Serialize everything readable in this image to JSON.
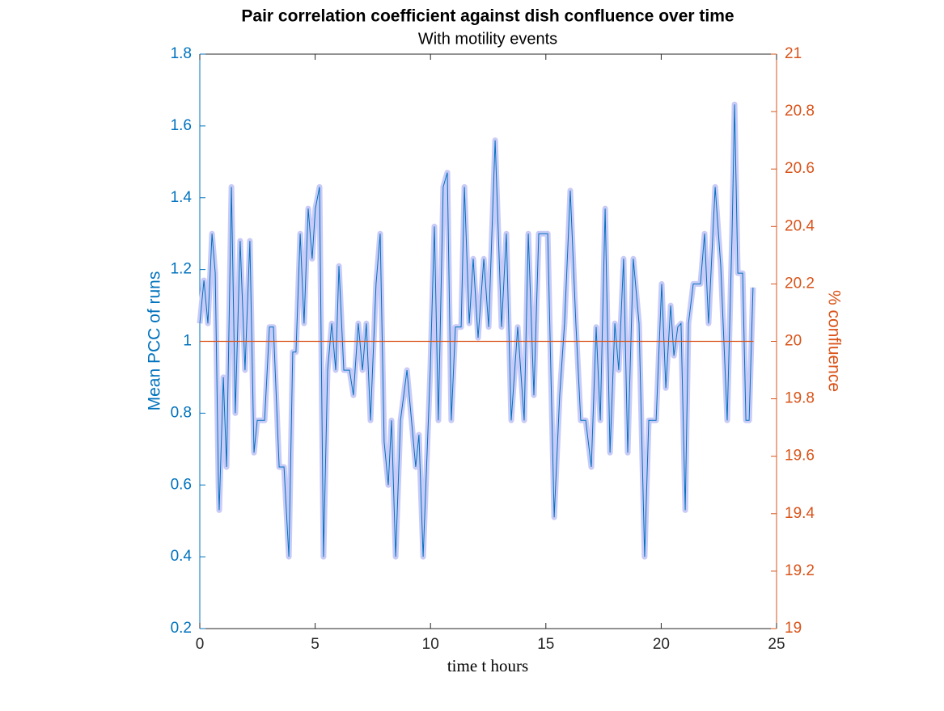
{
  "chart_data": {
    "type": "line",
    "title": "Pair correlation coefficient against dish confluence over time",
    "subtitle": "With motility events",
    "xlabel": "time t hours",
    "ylabel": "Mean PCC of runs",
    "y2label": "% confluence",
    "xlim": [
      0,
      25
    ],
    "xticks": [
      0,
      5,
      10,
      15,
      20,
      25
    ],
    "ylim": [
      0.2,
      1.8
    ],
    "yticks": [
      0.2,
      0.4,
      0.6,
      0.8,
      1,
      1.2,
      1.4,
      1.6,
      1.8
    ],
    "y2lim": [
      19,
      21
    ],
    "y2ticks": [
      19,
      19.2,
      19.4,
      19.6,
      19.8,
      20,
      20.2,
      20.4,
      20.6,
      20.8,
      21
    ],
    "grid": false,
    "series": [
      {
        "color": "#0072bd",
        "axis": "y",
        "x": [
          0,
          0.18,
          0.35,
          0.53,
          0.67,
          0.81,
          0.84,
          1.02,
          1.16,
          1.37,
          1.54,
          1.75,
          1.96,
          2.17,
          2.35,
          2.49,
          2.81,
          3.02,
          3.19,
          3.44,
          3.65,
          3.86,
          4.03,
          4.17,
          4.35,
          4.52,
          4.7,
          4.87,
          5.01,
          5.19,
          5.36,
          5.54,
          5.72,
          5.89,
          6.03,
          6.24,
          6.49,
          6.66,
          6.87,
          7.05,
          7.22,
          7.4,
          7.64,
          7.82,
          7.99,
          8.17,
          8.31,
          8.49,
          8.7,
          8.98,
          9.36,
          9.5,
          9.68,
          9.99,
          10.17,
          10.34,
          10.55,
          10.73,
          10.9,
          11.08,
          11.33,
          11.47,
          11.68,
          11.85,
          12.06,
          12.31,
          12.52,
          12.8,
          13.08,
          13.29,
          13.5,
          13.78,
          14.06,
          14.24,
          14.48,
          14.69,
          15.08,
          15.36,
          15.6,
          15.81,
          16.06,
          16.3,
          16.51,
          16.73,
          16.97,
          17.18,
          17.36,
          17.57,
          17.78,
          17.99,
          18.16,
          18.37,
          18.55,
          18.79,
          19.04,
          19.28,
          19.46,
          19.78,
          20.02,
          20.2,
          20.41,
          20.55,
          20.72,
          20.86,
          21.04,
          21.18,
          21.39,
          21.7,
          21.88,
          22.05,
          22.34,
          22.58,
          22.86,
          23.07,
          23.18,
          23.32,
          23.53,
          23.67,
          23.81,
          23.98
        ],
        "values": [
          1.05,
          1.17,
          1.05,
          1.3,
          1.19,
          0.6,
          0.53,
          0.9,
          0.65,
          1.43,
          0.8,
          1.28,
          0.92,
          1.28,
          0.69,
          0.78,
          0.78,
          1.04,
          1.04,
          0.65,
          0.65,
          0.4,
          0.97,
          0.97,
          1.3,
          1.05,
          1.37,
          1.23,
          1.37,
          1.43,
          0.4,
          0.92,
          1.05,
          0.92,
          1.21,
          0.92,
          0.92,
          0.85,
          1.05,
          0.92,
          1.05,
          0.78,
          1.16,
          1.3,
          0.72,
          0.6,
          0.78,
          0.4,
          0.78,
          0.92,
          0.65,
          0.74,
          0.4,
          0.92,
          1.32,
          0.78,
          1.43,
          1.47,
          0.78,
          1.04,
          1.04,
          1.43,
          1.05,
          1.23,
          1.01,
          1.23,
          1.04,
          1.56,
          1.04,
          1.3,
          0.78,
          1.04,
          0.78,
          1.3,
          0.85,
          1.3,
          1.3,
          0.51,
          0.85,
          1.05,
          1.42,
          1.05,
          0.78,
          0.78,
          0.65,
          1.04,
          0.78,
          1.37,
          0.69,
          1.05,
          0.92,
          1.23,
          0.69,
          1.23,
          1.05,
          0.4,
          0.78,
          0.78,
          1.16,
          0.87,
          1.1,
          0.96,
          1.04,
          1.05,
          0.53,
          1.05,
          1.16,
          1.16,
          1.3,
          1.05,
          1.43,
          1.21,
          0.78,
          1.3,
          1.66,
          1.19,
          1.19,
          0.78,
          0.78,
          1.15
        ]
      },
      {
        "color": "#d95319",
        "axis": "y2",
        "x": [
          0,
          24
        ],
        "values": [
          20,
          20
        ]
      }
    ]
  }
}
